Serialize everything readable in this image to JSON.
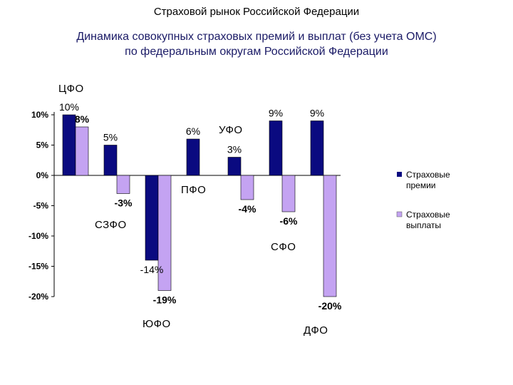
{
  "header": {
    "title": "Страховой рынок Российской Федерации",
    "subtitle_line1": "Динамика совокупных страховых премий и выплат (без учета ОМС)",
    "subtitle_line2": "по федеральным округам Российской Федерации"
  },
  "chart_data": {
    "type": "bar",
    "categories": [
      "ЦФО",
      "СЗФО",
      "ЮФО",
      "ПФО",
      "УФО",
      "СФО",
      "ДФО"
    ],
    "series": [
      {
        "name": "Страховые премии",
        "values": [
          10,
          5,
          -14,
          6,
          3,
          9,
          9
        ],
        "labels": [
          "10%",
          "5%",
          "-14%",
          "6%",
          "3%",
          "9%",
          "9%"
        ],
        "color": "#0a0a80"
      },
      {
        "name": "Страховые выплаты",
        "values": [
          8,
          -3,
          -19,
          0,
          -4,
          -6,
          -20
        ],
        "labels": [
          "8%",
          "-3%",
          "-19%",
          "",
          "-4%",
          "-6%",
          "-20%"
        ],
        "color": "#c4a3f2"
      }
    ],
    "ylim": [
      -20,
      10
    ],
    "yticks": [
      "10%",
      "5%",
      "0%",
      "-5%",
      "-10%",
      "-15%",
      "-20%"
    ],
    "legend_position": "right",
    "legend": {
      "premiums_line1": "Страховые",
      "premiums_line2": "премии",
      "payouts_line1": "Страховые",
      "payouts_line2": "выплаты"
    }
  }
}
